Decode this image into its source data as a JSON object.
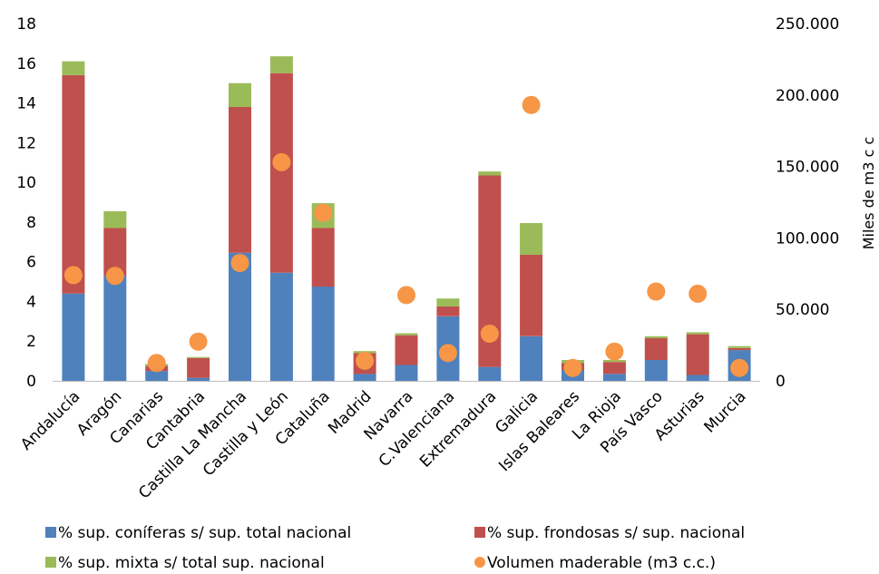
{
  "chart_data": {
    "type": "bar",
    "stacked": true,
    "categories": [
      "Andalucía",
      "Aragón",
      "Canarias",
      "Cantabria",
      "Castilla La Mancha",
      "Castilla y León",
      "Cataluña",
      "Madrid",
      "Navarra",
      "C.Valenciana",
      "Extremadura",
      "Galicia",
      "Islas Baleares",
      "La Rioja",
      "País Vasco",
      "Asturias",
      "Murcia"
    ],
    "series": [
      {
        "name": "% sup. coníferas s/ sup. total nacional",
        "color": "#4F81BD",
        "axis": "left",
        "kind": "bar",
        "values": [
          4.4,
          5.3,
          0.5,
          0.15,
          6.45,
          5.45,
          4.75,
          0.35,
          0.8,
          3.25,
          0.7,
          2.25,
          0.55,
          0.35,
          1.05,
          0.3,
          1.55
        ]
      },
      {
        "name": "% sup. frondosas s/ sup. nacional",
        "color": "#C0504D",
        "axis": "left",
        "kind": "bar",
        "values": [
          11.0,
          2.4,
          0.25,
          1.0,
          7.35,
          10.05,
          2.95,
          1.05,
          1.5,
          0.5,
          9.65,
          4.1,
          0.35,
          0.6,
          1.1,
          2.05,
          0.1
        ]
      },
      {
        "name": "% sup. mixta s/ total sup. nacional",
        "color": "#9BBB59",
        "axis": "left",
        "kind": "bar",
        "values": [
          0.7,
          0.85,
          0.1,
          0.05,
          1.2,
          0.85,
          1.25,
          0.1,
          0.1,
          0.4,
          0.2,
          1.6,
          0.15,
          0.1,
          0.1,
          0.1,
          0.1
        ]
      },
      {
        "name": "Volumen maderable (m3 c.c.)",
        "color": "#F79646",
        "axis": "right",
        "kind": "marker",
        "values": [
          74000,
          73500,
          12500,
          27500,
          82500,
          153000,
          117500,
          14000,
          60000,
          19500,
          33000,
          193000,
          9000,
          20500,
          62500,
          61000,
          9000
        ]
      }
    ],
    "y_left": {
      "min": 0,
      "max": 18,
      "ticks": [
        "0",
        "2",
        "4",
        "6",
        "8",
        "10",
        "12",
        "14",
        "16",
        "18"
      ]
    },
    "y_right": {
      "min": 0,
      "max": 250000,
      "ticks": [
        "0",
        "50.000",
        "100.000",
        "150.000",
        "200.000",
        "250.000"
      ],
      "label": "Miles de m3 c c"
    },
    "legend_position": "bottom",
    "grid": false
  }
}
